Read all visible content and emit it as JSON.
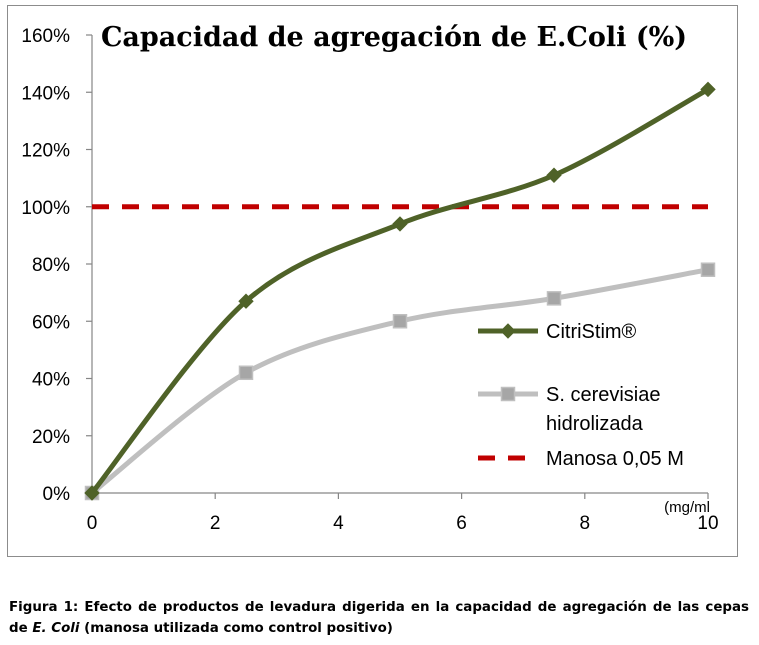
{
  "chart_data": {
    "type": "line",
    "title": "Capacidad de agregación de E.Coli (%)",
    "x_unit_label": "(mg/ml",
    "xlim": [
      0,
      10
    ],
    "x_ticks": [
      "0",
      "2",
      "4",
      "6",
      "8",
      "10"
    ],
    "ylim": [
      0,
      160
    ],
    "y_ticks": [
      "0%",
      "20%",
      "40%",
      "60%",
      "80%",
      "100%",
      "120%",
      "140%",
      "160%"
    ],
    "grid": false,
    "legend_position": "right-middle",
    "series": [
      {
        "name": "CitriStim®",
        "color": "#4f6228",
        "marker": "diamond",
        "smooth": true,
        "x": [
          0,
          2.5,
          5,
          7.5,
          10
        ],
        "y": [
          0,
          67,
          94,
          111,
          141
        ]
      },
      {
        "name_lines": [
          "S. cerevisiae",
          "hidrolizada"
        ],
        "color": "#bfbfbf",
        "marker": "square",
        "smooth": true,
        "x": [
          0,
          2.5,
          5,
          7.5,
          10
        ],
        "y": [
          0,
          42,
          60,
          68,
          78
        ]
      },
      {
        "name": "Manosa 0,05 M",
        "color": "#c00000",
        "style": "dashed",
        "x": [
          0,
          10
        ],
        "y": [
          100,
          100
        ]
      }
    ]
  },
  "caption": {
    "part1": "Figura 1: Efecto de productos de levadura digerida en la capacidad de agregación de las cepas de ",
    "italic": "E. Coli",
    "part2": " (manosa utilizada como control positivo)"
  }
}
